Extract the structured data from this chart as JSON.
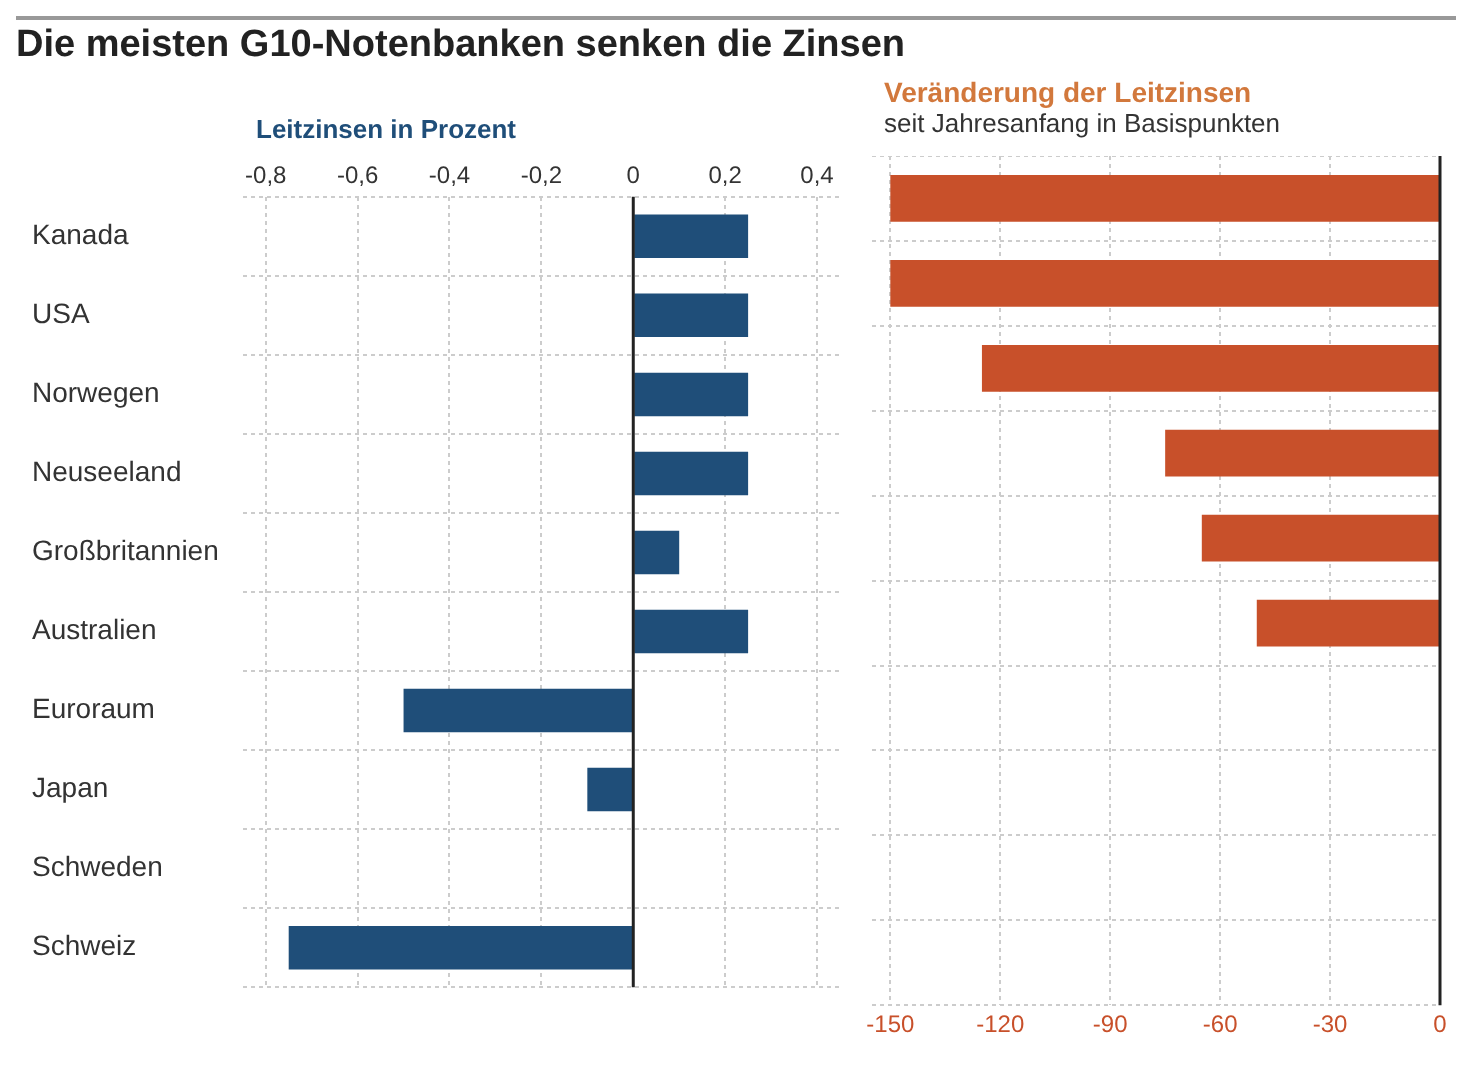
{
  "chart_data": [
    {
      "type": "bar",
      "orientation": "horizontal",
      "title": "Die meisten G10-Notenbanken senken die Zinsen",
      "subtitle": "Leitzinsen in Prozent",
      "categories": [
        "Kanada",
        "USA",
        "Norwegen",
        "Neuseeland",
        "Großbritannien",
        "Australien",
        "Euroraum",
        "Japan",
        "Schweden",
        "Schweiz"
      ],
      "values": [
        0.25,
        0.25,
        0.25,
        0.25,
        0.1,
        0.25,
        -0.5,
        -0.1,
        0,
        -0.75
      ],
      "color": "#1f4e79",
      "xlim": [
        -0.85,
        0.45
      ],
      "xticks": [
        {
          "value": -0.8,
          "label": "-0,8"
        },
        {
          "value": -0.6,
          "label": "-0,6"
        },
        {
          "value": -0.4,
          "label": "-0,4"
        },
        {
          "value": -0.2,
          "label": "-0,2"
        },
        0,
        {
          "value": 0.2,
          "label": "0,2"
        },
        {
          "value": 0.4,
          "label": "0,4"
        }
      ],
      "grid": true,
      "ref_lines": [
        {
          "axis": "x",
          "value": 0,
          "color": "#222222"
        }
      ]
    },
    {
      "type": "bar",
      "orientation": "horizontal",
      "title": "Veränderung der Leitzinsen",
      "subtitle": "seit Jahresanfang in Basispunkten",
      "categories": [
        null,
        null,
        null,
        null,
        null,
        null,
        null,
        null,
        null,
        null
      ],
      "values": [
        -150,
        -150,
        -125,
        -75,
        -65,
        -50,
        0,
        0,
        0,
        0
      ],
      "color": "#c8502a",
      "xlim": [
        -155,
        0
      ],
      "xticks": [
        -150,
        -120,
        -90,
        -60,
        -30,
        0
      ],
      "grid": true,
      "tick_labels": "x",
      "ref_lines": [
        {
          "axis": "x",
          "value": 0,
          "color": "#222222"
        }
      ]
    }
  ]
}
